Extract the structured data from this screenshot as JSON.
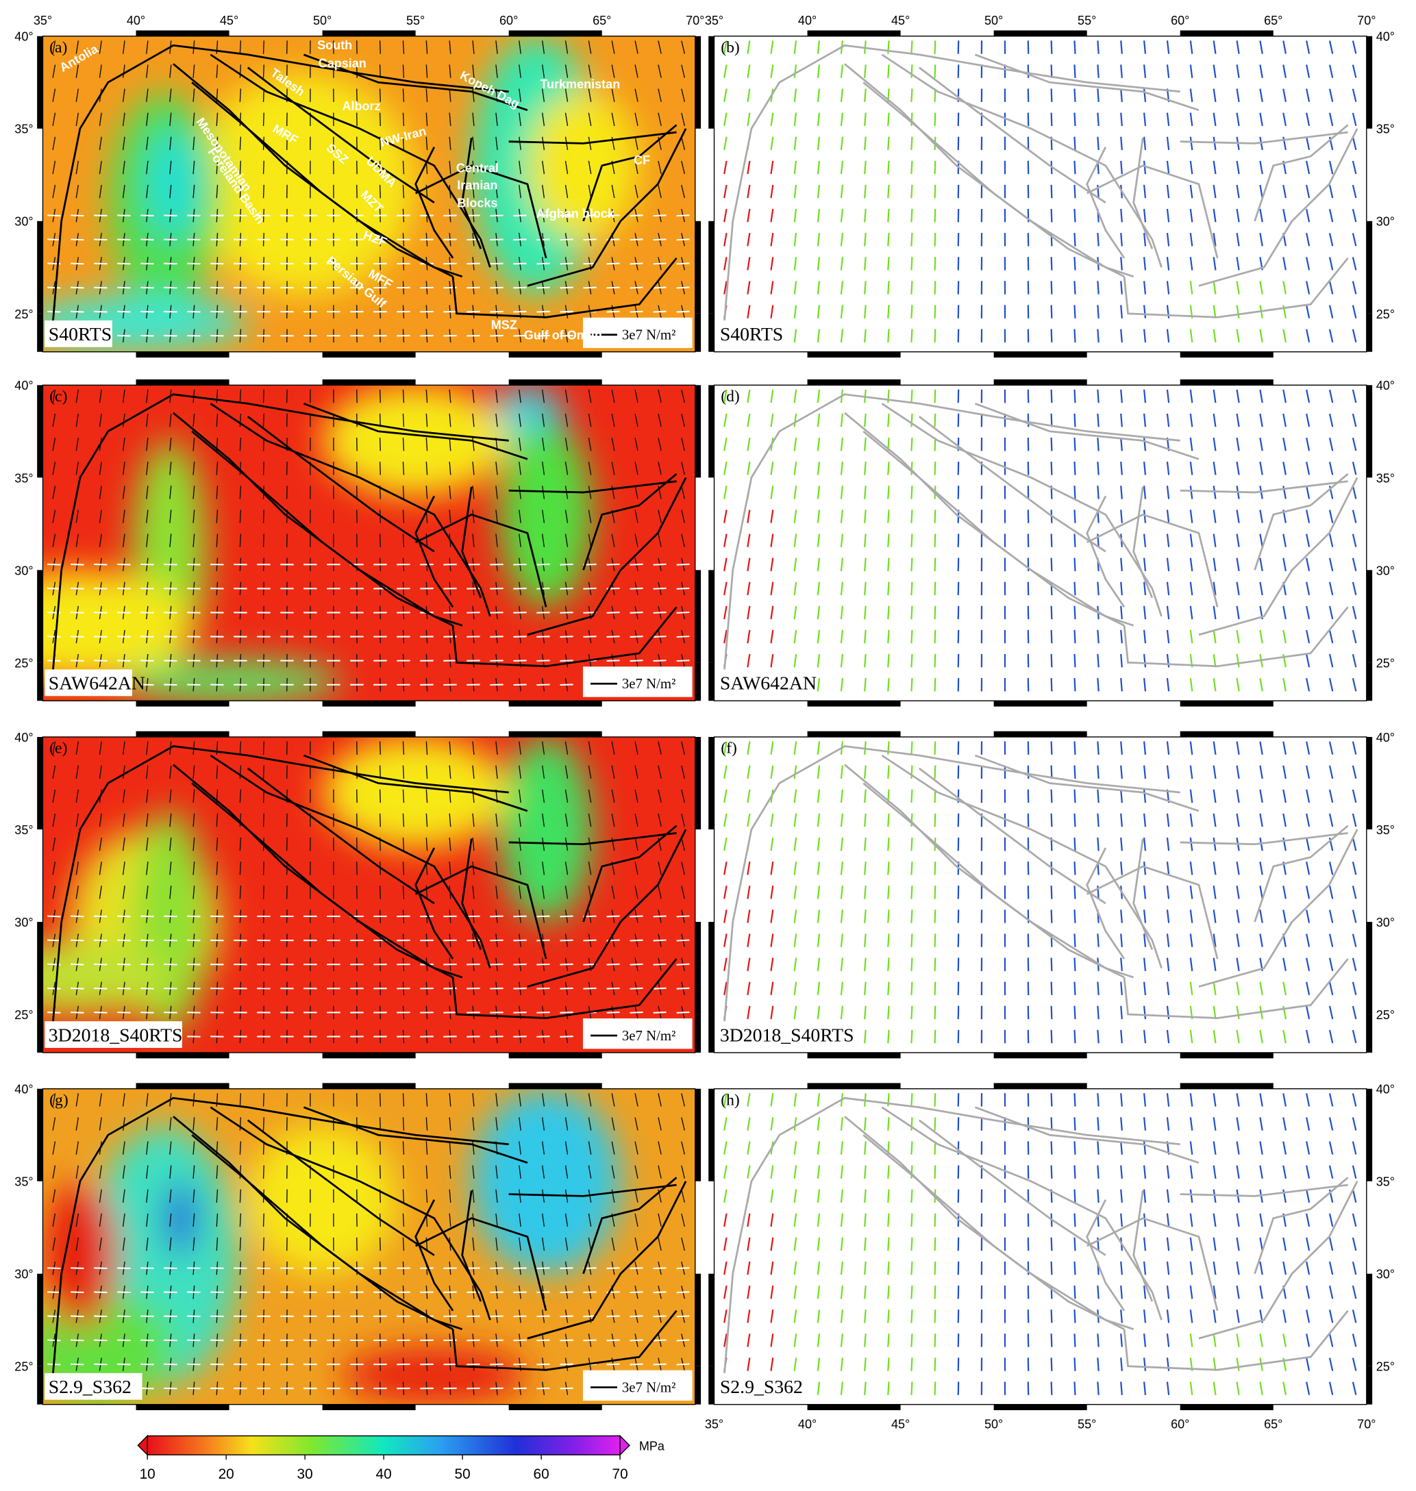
{
  "panels": [
    {
      "label": "(a)",
      "model": "S40RTS",
      "scale_label": "3e7 N/m²"
    },
    {
      "label": "(b)",
      "model": "S40RTS"
    },
    {
      "label": "(c)",
      "model": "SAW642AN",
      "scale_label": "3e7 N/m²"
    },
    {
      "label": "(d)",
      "model": "SAW642AN"
    },
    {
      "label": "(e)",
      "model": "3D2018_S40RTS",
      "scale_label": "3e7 N/m²"
    },
    {
      "label": "(f)",
      "model": "3D2018_S40RTS"
    },
    {
      "label": "(g)",
      "model": "S2.9_S362",
      "scale_label": "3e7 N/m²"
    },
    {
      "label": "(h)",
      "model": "S2.9_S362"
    }
  ],
  "region_labels": [
    "Antolia",
    "South",
    "Capsian",
    "Talesh",
    "Alborz",
    "Kopeh Dag",
    "Turkmenistan",
    "NW-Iran",
    "MRF",
    "SSZ",
    "UDMA",
    "MZT",
    "HZF",
    "Mesopotamian",
    "Foreland Basin",
    "Central",
    "Iranian",
    "Blocks",
    "Afghan block",
    "CF",
    "MFF",
    "Persian Gulf",
    "MSZ",
    "Gulf of Oman"
  ],
  "axes": {
    "lon_ticks": [
      "35°",
      "40°",
      "45°",
      "50°",
      "55°",
      "60°",
      "65°",
      "70°"
    ],
    "lat_ticks": [
      "25°",
      "30°",
      "35°",
      "40°"
    ]
  },
  "colorbar": {
    "ticks": [
      10,
      20,
      30,
      40,
      50,
      60,
      70
    ],
    "unit": "MPa"
  }
}
